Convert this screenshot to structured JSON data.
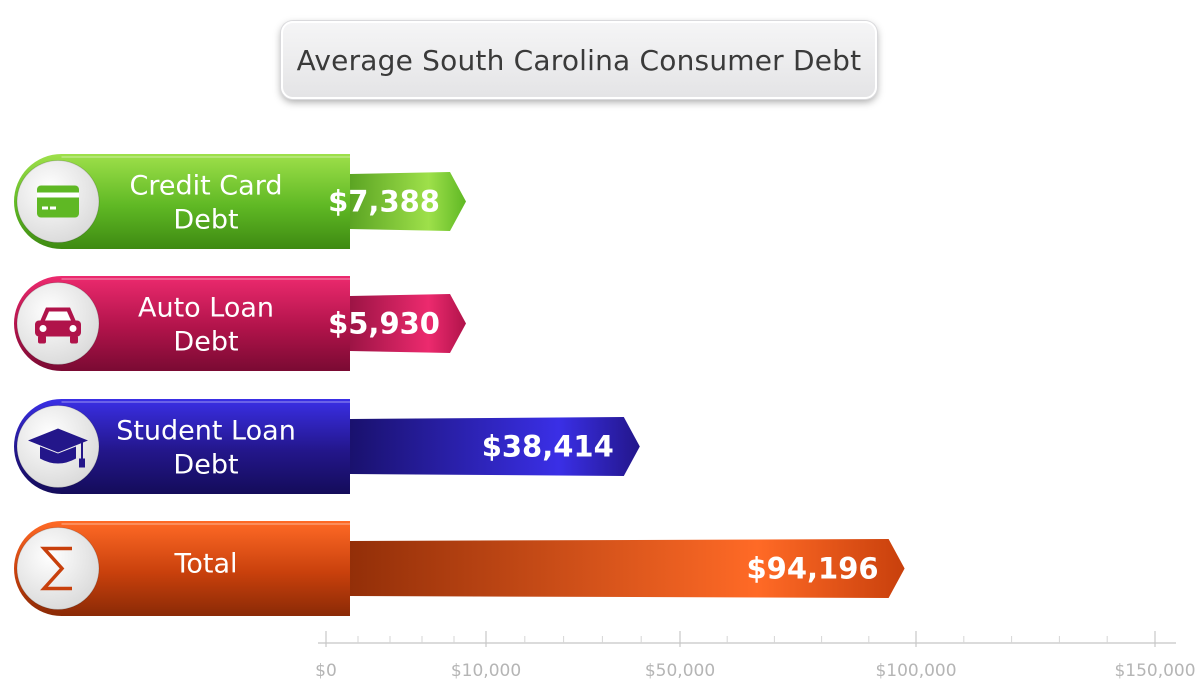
{
  "chart_data": {
    "type": "bar",
    "orientation": "horizontal",
    "title": "Average South Carolina Consumer Debt",
    "categories": [
      {
        "line1": "Credit Card",
        "line2": "Debt",
        "icon": "credit-card-icon",
        "color": "#5fb824",
        "color_light": "#9ee04a",
        "color_dark": "#3e8a12"
      },
      {
        "line1": "Auto Loan",
        "line2": "Debt",
        "icon": "car-icon",
        "color": "#b0134a",
        "color_light": "#ec2a6e",
        "color_dark": "#7a0a33"
      },
      {
        "line1": "Student Loan",
        "line2": "Debt",
        "icon": "graduation-cap-icon",
        "color": "#23168a",
        "color_light": "#3a2fe6",
        "color_dark": "#140c5a"
      },
      {
        "line1": "Total",
        "line2": "",
        "icon": "sigma-icon",
        "color": "#c8400c",
        "color_light": "#ff6a26",
        "color_dark": "#8a2a06"
      }
    ],
    "values": [
      7388,
      5930,
      38414,
      94196
    ],
    "value_labels": [
      "$7,388",
      "$5,930",
      "$38,414",
      "$94,196"
    ],
    "x_ticks": [
      {
        "value": 0,
        "label": "$0"
      },
      {
        "value": 10000,
        "label": "$10,000"
      },
      {
        "value": 50000,
        "label": "$50,000"
      },
      {
        "value": 100000,
        "label": "$100,000"
      },
      {
        "value": 150000,
        "label": "$150,000"
      }
    ],
    "xlim": [
      0,
      150000
    ],
    "grid": false,
    "legend": "none"
  }
}
